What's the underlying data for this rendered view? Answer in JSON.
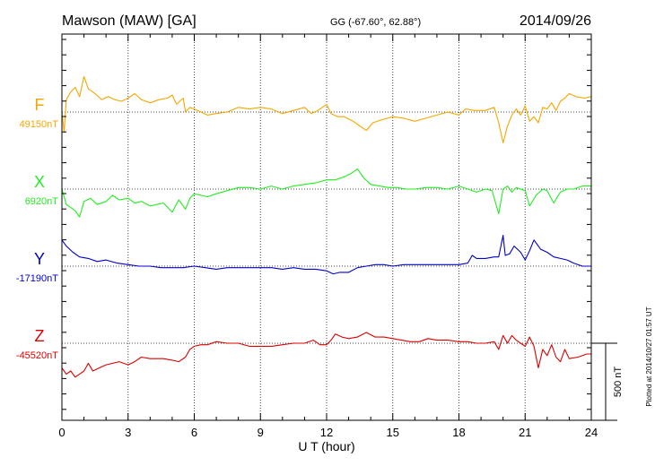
{
  "header": {
    "station": "Mawson (MAW)  [GA]",
    "coords": "GG (-67.60°,  62.88°)",
    "date": "2014/09/26"
  },
  "side_note": "Plotted at 2014/10/27 01:57 UT",
  "scale_bar": {
    "label": "500 nT",
    "value_nT": 500
  },
  "chart_data": {
    "type": "line",
    "xlabel": "U T (hour)",
    "xlim": [
      0,
      24
    ],
    "x_ticks": [
      "0",
      "3",
      "6",
      "9",
      "12",
      "15",
      "18",
      "21",
      "24"
    ],
    "y_unit": "nT",
    "grid": "dotted",
    "series": [
      {
        "name": "F",
        "base_label": "49150nT",
        "baseline_nT": 49150,
        "color": "#f5a700",
        "points": [
          [
            0,
            49150
          ],
          [
            0.1,
            49020
          ],
          [
            0.2,
            49230
          ],
          [
            0.4,
            49280
          ],
          [
            0.6,
            49310
          ],
          [
            0.8,
            49250
          ],
          [
            1.0,
            49380
          ],
          [
            1.2,
            49300
          ],
          [
            1.5,
            49270
          ],
          [
            1.8,
            49230
          ],
          [
            2.1,
            49250
          ],
          [
            2.4,
            49230
          ],
          [
            2.7,
            49220
          ],
          [
            3.0,
            49240
          ],
          [
            3.3,
            49270
          ],
          [
            3.6,
            49230
          ],
          [
            4.0,
            49210
          ],
          [
            4.4,
            49230
          ],
          [
            4.8,
            49240
          ],
          [
            5.0,
            49260
          ],
          [
            5.2,
            49200
          ],
          [
            5.5,
            49240
          ],
          [
            5.6,
            49150
          ],
          [
            5.8,
            49180
          ],
          [
            6.0,
            49170
          ],
          [
            6.3,
            49150
          ],
          [
            6.6,
            49130
          ],
          [
            7.0,
            49140
          ],
          [
            7.5,
            49150
          ],
          [
            8.0,
            49180
          ],
          [
            8.5,
            49170
          ],
          [
            9.0,
            49180
          ],
          [
            9.5,
            49170
          ],
          [
            10.0,
            49140
          ],
          [
            10.5,
            49160
          ],
          [
            11.0,
            49180
          ],
          [
            11.3,
            49140
          ],
          [
            11.6,
            49160
          ],
          [
            12.0,
            49200
          ],
          [
            12.2,
            49140
          ],
          [
            12.5,
            49120
          ],
          [
            12.8,
            49120
          ],
          [
            13.2,
            49090
          ],
          [
            13.5,
            49060
          ],
          [
            13.8,
            49030
          ],
          [
            14.1,
            49080
          ],
          [
            14.5,
            49100
          ],
          [
            15.0,
            49120
          ],
          [
            15.5,
            49110
          ],
          [
            16.0,
            49090
          ],
          [
            16.5,
            49110
          ],
          [
            17.0,
            49130
          ],
          [
            17.5,
            49150
          ],
          [
            18.0,
            49130
          ],
          [
            18.3,
            49170
          ],
          [
            18.7,
            49160
          ],
          [
            19.2,
            49160
          ],
          [
            19.6,
            49180
          ],
          [
            19.8,
            49080
          ],
          [
            20.0,
            48950
          ],
          [
            20.2,
            49060
          ],
          [
            20.4,
            49130
          ],
          [
            20.6,
            49170
          ],
          [
            20.8,
            49130
          ],
          [
            21.0,
            49190
          ],
          [
            21.2,
            49090
          ],
          [
            21.4,
            49120
          ],
          [
            21.6,
            49080
          ],
          [
            21.8,
            49180
          ],
          [
            22.0,
            49170
          ],
          [
            22.2,
            49210
          ],
          [
            22.4,
            49160
          ],
          [
            22.6,
            49220
          ],
          [
            22.8,
            49240
          ],
          [
            23.0,
            49270
          ],
          [
            23.3,
            49250
          ],
          [
            23.7,
            49240
          ],
          [
            24.0,
            49250
          ]
        ]
      },
      {
        "name": "X",
        "base_label": "6920nT",
        "baseline_nT": 6920,
        "color": "#22ee22",
        "points": [
          [
            0,
            6920
          ],
          [
            0.2,
            6820
          ],
          [
            0.4,
            6800
          ],
          [
            0.6,
            6780
          ],
          [
            0.8,
            6740
          ],
          [
            1.0,
            6840
          ],
          [
            1.3,
            6860
          ],
          [
            1.6,
            6820
          ],
          [
            2.0,
            6840
          ],
          [
            2.3,
            6880
          ],
          [
            2.6,
            6850
          ],
          [
            3.0,
            6860
          ],
          [
            3.3,
            6830
          ],
          [
            3.6,
            6840
          ],
          [
            4.0,
            6810
          ],
          [
            4.3,
            6820
          ],
          [
            4.6,
            6830
          ],
          [
            5.0,
            6770
          ],
          [
            5.3,
            6850
          ],
          [
            5.6,
            6790
          ],
          [
            5.8,
            6860
          ],
          [
            6.0,
            6890
          ],
          [
            6.3,
            6880
          ],
          [
            6.6,
            6870
          ],
          [
            7.0,
            6890
          ],
          [
            7.5,
            6910
          ],
          [
            8.0,
            6930
          ],
          [
            8.5,
            6930
          ],
          [
            9.0,
            6920
          ],
          [
            9.5,
            6940
          ],
          [
            10.0,
            6920
          ],
          [
            10.5,
            6940
          ],
          [
            11.0,
            6950
          ],
          [
            11.5,
            6960
          ],
          [
            12.0,
            6980
          ],
          [
            12.4,
            6980
          ],
          [
            12.8,
            7000
          ],
          [
            13.1,
            7020
          ],
          [
            13.4,
            7050
          ],
          [
            13.7,
            6990
          ],
          [
            14.0,
            6950
          ],
          [
            14.4,
            6940
          ],
          [
            14.8,
            6930
          ],
          [
            15.2,
            6930
          ],
          [
            15.6,
            6920
          ],
          [
            16.0,
            6920
          ],
          [
            16.5,
            6930
          ],
          [
            17.0,
            6930
          ],
          [
            17.5,
            6920
          ],
          [
            18.0,
            6940
          ],
          [
            18.4,
            6920
          ],
          [
            18.8,
            6900
          ],
          [
            19.2,
            6920
          ],
          [
            19.5,
            6910
          ],
          [
            19.8,
            6760
          ],
          [
            20.0,
            6920
          ],
          [
            20.2,
            6940
          ],
          [
            20.4,
            6900
          ],
          [
            20.6,
            6930
          ],
          [
            20.8,
            6920
          ],
          [
            21.0,
            6910
          ],
          [
            21.2,
            6810
          ],
          [
            21.5,
            6880
          ],
          [
            21.8,
            6920
          ],
          [
            22.0,
            6910
          ],
          [
            22.3,
            6830
          ],
          [
            22.6,
            6900
          ],
          [
            22.9,
            6920
          ],
          [
            23.2,
            6920
          ],
          [
            23.6,
            6940
          ],
          [
            24.0,
            6940
          ]
        ]
      },
      {
        "name": "Y",
        "base_label": "-17190nT",
        "baseline_nT": -17190,
        "color": "#0000cc",
        "points": [
          [
            0,
            -17020
          ],
          [
            0.2,
            -17060
          ],
          [
            0.5,
            -17100
          ],
          [
            0.8,
            -17130
          ],
          [
            1.2,
            -17140
          ],
          [
            1.6,
            -17160
          ],
          [
            2.0,
            -17150
          ],
          [
            2.5,
            -17170
          ],
          [
            3.0,
            -17180
          ],
          [
            3.5,
            -17190
          ],
          [
            4.0,
            -17190
          ],
          [
            4.5,
            -17200
          ],
          [
            5.0,
            -17200
          ],
          [
            5.5,
            -17200
          ],
          [
            6.0,
            -17190
          ],
          [
            6.5,
            -17200
          ],
          [
            7.0,
            -17210
          ],
          [
            7.5,
            -17200
          ],
          [
            8.0,
            -17200
          ],
          [
            8.5,
            -17200
          ],
          [
            9.0,
            -17200
          ],
          [
            9.5,
            -17200
          ],
          [
            10.0,
            -17210
          ],
          [
            10.5,
            -17200
          ],
          [
            11.0,
            -17210
          ],
          [
            11.5,
            -17210
          ],
          [
            12.0,
            -17220
          ],
          [
            12.3,
            -17240
          ],
          [
            12.6,
            -17230
          ],
          [
            13.0,
            -17230
          ],
          [
            13.4,
            -17200
          ],
          [
            13.8,
            -17190
          ],
          [
            14.2,
            -17180
          ],
          [
            14.6,
            -17180
          ],
          [
            15.0,
            -17190
          ],
          [
            15.5,
            -17180
          ],
          [
            16.0,
            -17180
          ],
          [
            16.5,
            -17180
          ],
          [
            17.0,
            -17180
          ],
          [
            17.5,
            -17180
          ],
          [
            18.0,
            -17180
          ],
          [
            18.4,
            -17170
          ],
          [
            18.6,
            -17120
          ],
          [
            18.8,
            -17140
          ],
          [
            19.2,
            -17140
          ],
          [
            19.6,
            -17130
          ],
          [
            19.8,
            -17130
          ],
          [
            20.0,
            -16990
          ],
          [
            20.1,
            -17120
          ],
          [
            20.3,
            -17110
          ],
          [
            20.5,
            -17060
          ],
          [
            20.8,
            -17100
          ],
          [
            21.0,
            -17150
          ],
          [
            21.2,
            -17090
          ],
          [
            21.4,
            -17020
          ],
          [
            21.7,
            -17080
          ],
          [
            22.0,
            -17100
          ],
          [
            22.3,
            -17130
          ],
          [
            22.6,
            -17140
          ],
          [
            22.9,
            -17150
          ],
          [
            23.2,
            -17170
          ],
          [
            23.6,
            -17190
          ],
          [
            24.0,
            -17190
          ]
        ]
      },
      {
        "name": "Z",
        "base_label": "-45520nT",
        "baseline_nT": -45520,
        "color": "#dd0000",
        "points": [
          [
            0,
            -45680
          ],
          [
            0.2,
            -45720
          ],
          [
            0.4,
            -45700
          ],
          [
            0.6,
            -45740
          ],
          [
            0.8,
            -45720
          ],
          [
            1.0,
            -45700
          ],
          [
            1.2,
            -45650
          ],
          [
            1.4,
            -45700
          ],
          [
            1.7,
            -45680
          ],
          [
            2.0,
            -45660
          ],
          [
            2.3,
            -45650
          ],
          [
            2.6,
            -45640
          ],
          [
            3.0,
            -45660
          ],
          [
            3.3,
            -45640
          ],
          [
            3.6,
            -45610
          ],
          [
            4.0,
            -45620
          ],
          [
            4.3,
            -45620
          ],
          [
            4.6,
            -45620
          ],
          [
            5.0,
            -45630
          ],
          [
            5.3,
            -45640
          ],
          [
            5.6,
            -45610
          ],
          [
            5.8,
            -45560
          ],
          [
            6.0,
            -45540
          ],
          [
            6.3,
            -45530
          ],
          [
            6.6,
            -45530
          ],
          [
            7.0,
            -45510
          ],
          [
            7.5,
            -45520
          ],
          [
            8.0,
            -45520
          ],
          [
            8.5,
            -45540
          ],
          [
            9.0,
            -45540
          ],
          [
            9.5,
            -45540
          ],
          [
            10.0,
            -45530
          ],
          [
            10.5,
            -45520
          ],
          [
            11.0,
            -45520
          ],
          [
            11.4,
            -45500
          ],
          [
            11.7,
            -45530
          ],
          [
            12.0,
            -45530
          ],
          [
            12.2,
            -45500
          ],
          [
            12.4,
            -45460
          ],
          [
            12.7,
            -45480
          ],
          [
            13.0,
            -45490
          ],
          [
            13.4,
            -45480
          ],
          [
            13.8,
            -45450
          ],
          [
            14.2,
            -45480
          ],
          [
            14.6,
            -45480
          ],
          [
            15.0,
            -45490
          ],
          [
            15.4,
            -45500
          ],
          [
            15.8,
            -45510
          ],
          [
            16.2,
            -45510
          ],
          [
            16.6,
            -45490
          ],
          [
            17.0,
            -45500
          ],
          [
            17.5,
            -45500
          ],
          [
            18.0,
            -45510
          ],
          [
            18.4,
            -45510
          ],
          [
            18.8,
            -45520
          ],
          [
            19.2,
            -45520
          ],
          [
            19.6,
            -45510
          ],
          [
            19.8,
            -45560
          ],
          [
            20.0,
            -45470
          ],
          [
            20.2,
            -45520
          ],
          [
            20.4,
            -45470
          ],
          [
            20.6,
            -45500
          ],
          [
            20.8,
            -45520
          ],
          [
            21.0,
            -45540
          ],
          [
            21.2,
            -45480
          ],
          [
            21.4,
            -45540
          ],
          [
            21.6,
            -45680
          ],
          [
            21.8,
            -45560
          ],
          [
            22.0,
            -45600
          ],
          [
            22.2,
            -45530
          ],
          [
            22.4,
            -45610
          ],
          [
            22.6,
            -45640
          ],
          [
            22.8,
            -45560
          ],
          [
            23.0,
            -45620
          ],
          [
            23.4,
            -45610
          ],
          [
            23.8,
            -45590
          ],
          [
            24.0,
            -45590
          ]
        ]
      }
    ]
  }
}
